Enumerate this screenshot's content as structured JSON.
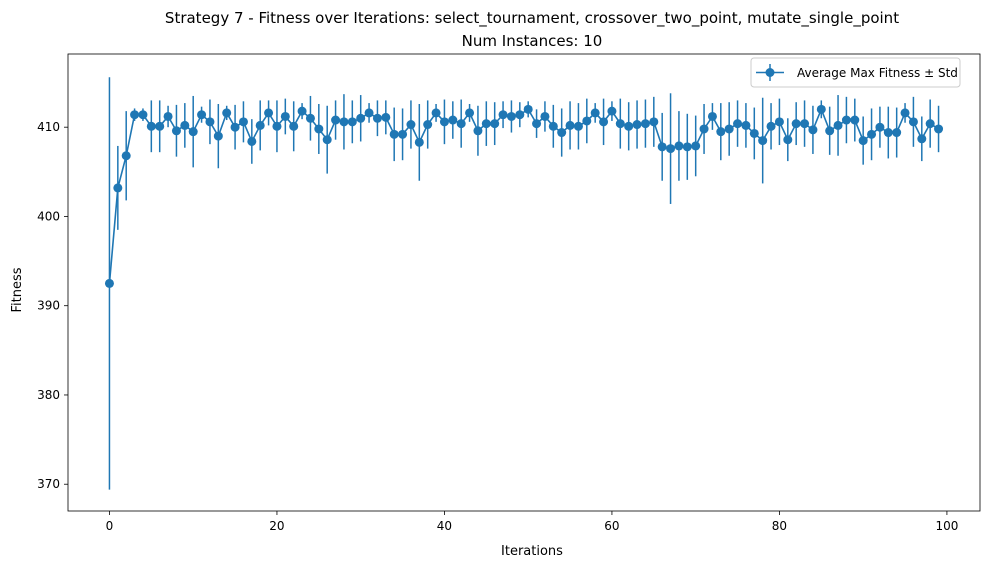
{
  "chart_data": {
    "type": "line",
    "title": "Strategy 7 - Fitness over Iterations: select_tournament, crossover_two_point, mutate_single_point",
    "subtitle": "Num Instances: 10",
    "xlabel": "Iterations",
    "ylabel": "Fitness",
    "xlim": [
      -4.95,
      103.95
    ],
    "ylim": [
      367,
      418.2
    ],
    "xticks": [
      0,
      20,
      40,
      60,
      80,
      100
    ],
    "yticks": [
      370,
      380,
      390,
      400,
      410
    ],
    "grid": false,
    "legend_position": "top-right",
    "series_color": "#1f77b4",
    "series": [
      {
        "name": "Average Max Fitness ± Std",
        "x": [
          0,
          1,
          2,
          3,
          4,
          5,
          6,
          7,
          8,
          9,
          10,
          11,
          12,
          13,
          14,
          15,
          16,
          17,
          18,
          19,
          20,
          21,
          22,
          23,
          24,
          25,
          26,
          27,
          28,
          29,
          30,
          31,
          32,
          33,
          34,
          35,
          36,
          37,
          38,
          39,
          40,
          41,
          42,
          43,
          44,
          45,
          46,
          47,
          48,
          49,
          50,
          51,
          52,
          53,
          54,
          55,
          56,
          57,
          58,
          59,
          60,
          61,
          62,
          63,
          64,
          65,
          66,
          67,
          68,
          69,
          70,
          71,
          72,
          73,
          74,
          75,
          76,
          77,
          78,
          79,
          80,
          81,
          82,
          83,
          84,
          85,
          86,
          87,
          88,
          89,
          90,
          91,
          92,
          93,
          94,
          95,
          96,
          97,
          98,
          99
        ],
        "y": [
          392.5,
          403.2,
          406.8,
          411.4,
          411.4,
          410.1,
          410.1,
          411.2,
          409.6,
          410.2,
          409.5,
          411.4,
          410.6,
          409.0,
          411.6,
          410.0,
          410.6,
          408.4,
          410.2,
          411.6,
          410.1,
          411.2,
          410.1,
          411.8,
          411.0,
          409.8,
          408.6,
          410.8,
          410.6,
          410.6,
          411.0,
          411.6,
          411.0,
          411.1,
          409.2,
          409.2,
          410.3,
          408.3,
          410.3,
          411.6,
          410.6,
          410.8,
          410.4,
          411.6,
          409.6,
          410.4,
          410.4,
          411.4,
          411.2,
          411.4,
          412.0,
          410.4,
          411.2,
          410.1,
          409.4,
          410.2,
          410.1,
          410.7,
          411.6,
          410.6,
          411.8,
          410.4,
          410.1,
          410.3,
          410.4,
          410.6,
          407.8,
          407.6,
          407.9,
          407.8,
          407.9,
          409.8,
          411.2,
          409.5,
          409.8,
          410.4,
          410.2,
          409.3,
          408.5,
          410.1,
          410.6,
          408.6,
          410.4,
          410.4,
          409.7,
          412.0,
          409.6,
          410.2,
          410.8,
          410.8,
          408.5,
          409.2,
          410.0,
          409.4,
          409.4,
          411.6,
          410.6,
          408.7,
          410.4,
          409.8
        ],
        "std": [
          23.1,
          4.7,
          5.0,
          0.7,
          0.7,
          2.9,
          2.9,
          1.2,
          2.9,
          2.5,
          4.0,
          0.9,
          2.5,
          3.6,
          0.8,
          2.5,
          2.3,
          2.5,
          2.8,
          1.4,
          2.9,
          2.0,
          2.8,
          0.9,
          2.5,
          2.8,
          3.8,
          2.2,
          3.1,
          2.4,
          2.6,
          1.1,
          2.0,
          1.9,
          3.0,
          2.9,
          2.7,
          4.3,
          2.7,
          1.0,
          2.5,
          2.1,
          2.7,
          1.0,
          2.8,
          2.5,
          2.4,
          1.5,
          1.8,
          1.4,
          0.9,
          1.6,
          1.7,
          2.4,
          2.7,
          2.7,
          2.6,
          2.5,
          1.1,
          2.6,
          1.1,
          2.8,
          2.7,
          2.7,
          2.7,
          2.8,
          3.8,
          6.2,
          3.9,
          3.7,
          3.4,
          2.8,
          1.5,
          3.2,
          3.0,
          2.6,
          2.5,
          2.9,
          4.8,
          2.6,
          2.6,
          2.4,
          2.4,
          2.6,
          2.7,
          1.0,
          2.7,
          3.4,
          2.6,
          2.4,
          2.7,
          2.9,
          2.3,
          2.9,
          2.8,
          1.1,
          2.8,
          2.5,
          2.7,
          2.6
        ]
      }
    ]
  }
}
